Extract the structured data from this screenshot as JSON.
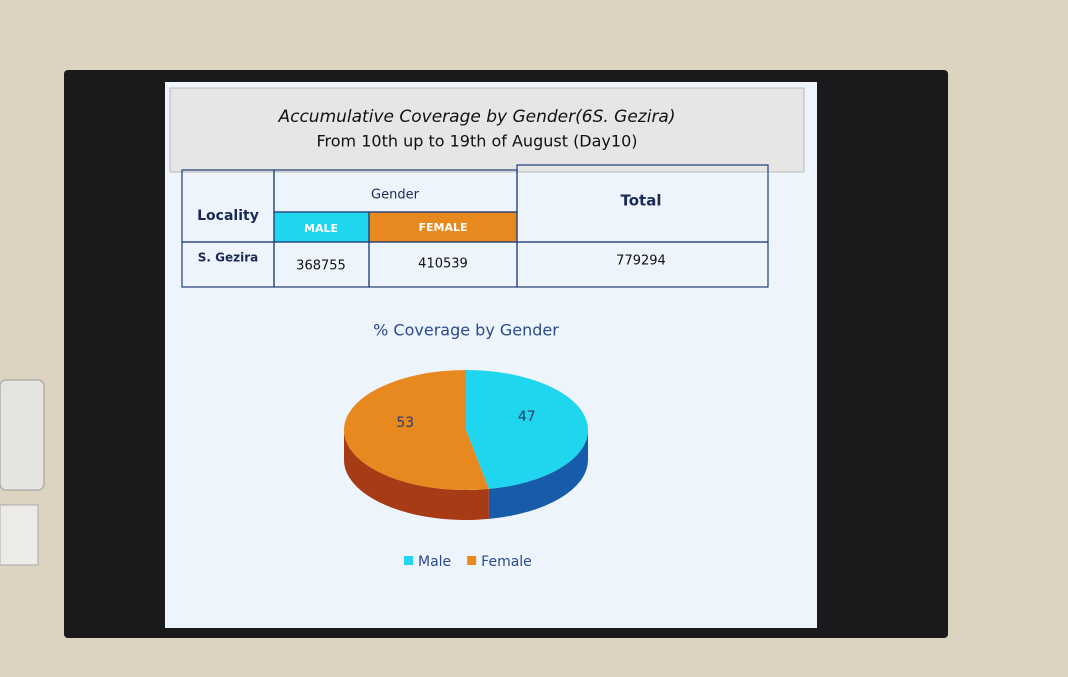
{
  "header": {
    "title": "Accumulative Coverage by Gender(6S. Gezira)",
    "subtitle": "From 10th up to 19th of August (Day10)"
  },
  "table": {
    "headers": {
      "locality": "Locality",
      "gender": "Gender",
      "male": "MALE",
      "female": "FEMALE",
      "total": "Total"
    },
    "rows": [
      [
        "S. Gezira",
        368755,
        410539,
        779294
      ]
    ]
  },
  "chart_data": {
    "type": "pie",
    "title": "% Coverage by Gender",
    "categories": [
      "Male",
      "Female"
    ],
    "values": [
      47,
      53
    ],
    "colors": [
      "#1fd6ee",
      "#e8891f"
    ],
    "legend": "bottom"
  }
}
